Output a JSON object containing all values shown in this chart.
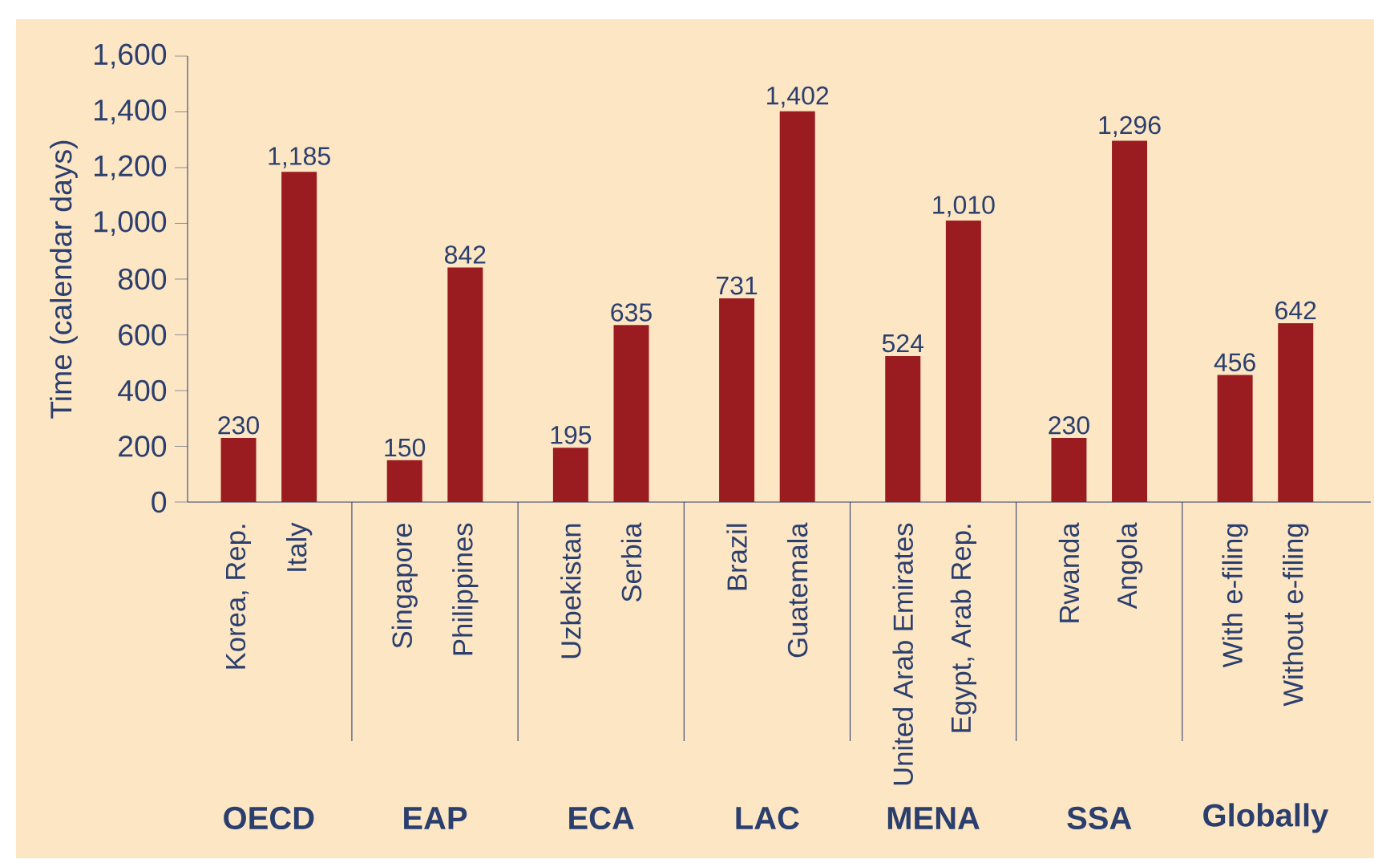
{
  "chart_data": {
    "type": "bar",
    "ylabel": "Time (calendar days)",
    "categories": [
      "Korea, Rep.",
      "Italy",
      "Singapore",
      "Philippines",
      "Uzbekistan",
      "Serbia",
      "Brazil",
      "Guatemala",
      "United Arab Emirates",
      "Egypt, Arab Rep.",
      "Rwanda",
      "Angola",
      "With e-filing",
      "Without e-filing"
    ],
    "values": [
      230,
      1185,
      150,
      842,
      195,
      635,
      731,
      1402,
      524,
      1010,
      230,
      1296,
      456,
      642
    ],
    "color": "#9a1c20",
    "ylim": [
      0,
      1600
    ],
    "yticks": [
      {
        "value": 0,
        "label": "0"
      },
      {
        "value": 200,
        "label": "200"
      },
      {
        "value": 400,
        "label": "400"
      },
      {
        "value": 600,
        "label": "600"
      },
      {
        "value": 800,
        "label": "800"
      },
      {
        "value": 1000,
        "label": "1,000"
      },
      {
        "value": 1200,
        "label": "1,200"
      },
      {
        "value": 1400,
        "label": "1,400"
      },
      {
        "value": 1600,
        "label": "1,600"
      }
    ],
    "value_labels": [
      "230",
      "1,185",
      "150",
      "842",
      "195",
      "635",
      "731",
      "1,402",
      "524",
      "1,010",
      "230",
      "1,296",
      "456",
      "642"
    ],
    "annotations": [
      "OECD",
      "EAP",
      "ECA",
      "LAC",
      "MENA",
      "SSA",
      "Globally"
    ]
  }
}
